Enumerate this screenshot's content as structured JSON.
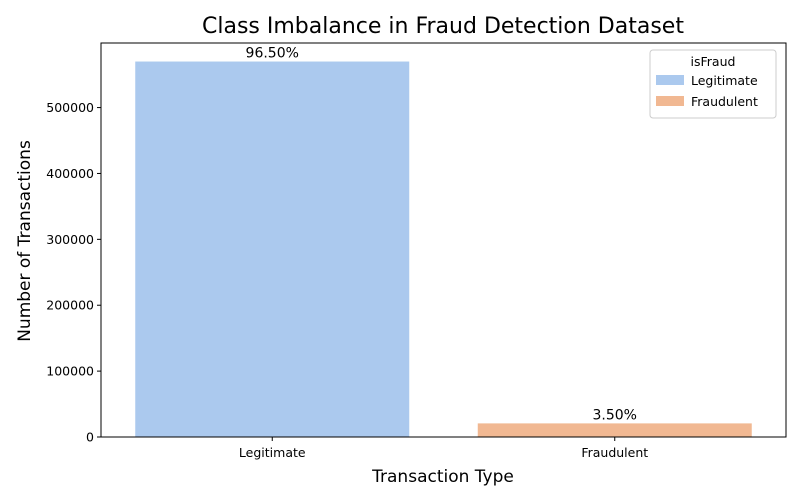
{
  "chart_data": {
    "type": "bar",
    "title": "Class Imbalance in Fraud Detection Dataset",
    "xlabel": "Transaction Type",
    "ylabel": "Number of Transactions",
    "categories": [
      "Legitimate",
      "Fraudulent"
    ],
    "values": [
      569877,
      20663
    ],
    "data_labels": [
      "96.50%",
      "3.50%"
    ],
    "colors": [
      "#abc9ee",
      "#f1b892"
    ],
    "ylim": [
      0,
      598000
    ],
    "yticks": [
      0,
      100000,
      200000,
      300000,
      400000,
      500000
    ],
    "ytick_labels": [
      "0",
      "100000",
      "200000",
      "300000",
      "400000",
      "500000"
    ],
    "grid": false,
    "legend": {
      "title": "isFraud",
      "position": "top-right",
      "entries": [
        "Legitimate",
        "Fraudulent"
      ]
    }
  }
}
